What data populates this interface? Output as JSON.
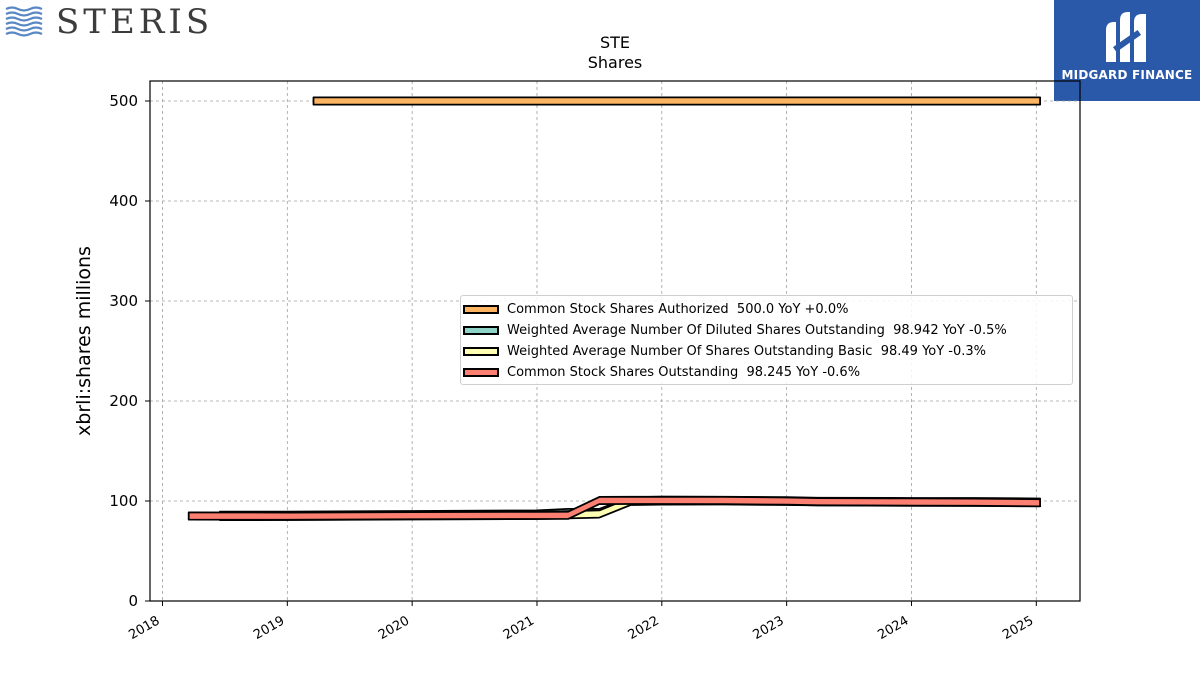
{
  "brand": {
    "company_name": "STERIS",
    "partner_name": "MIDGARD FINANCE",
    "partner_bg": "#2b59a9",
    "waves_color": "#5a88c4"
  },
  "title": {
    "line1": "STE",
    "line2": "Shares"
  },
  "chart_data": {
    "type": "area",
    "title": "STE Shares",
    "xlabel": "",
    "ylabel": "xbrli:shares millions",
    "xlim": [
      2017.9,
      2025.35
    ],
    "ylim": [
      0,
      520
    ],
    "x_ticks": [
      "2018",
      "2019",
      "2020",
      "2021",
      "2022",
      "2023",
      "2024",
      "2025"
    ],
    "y_ticks": [
      "0",
      "100",
      "200",
      "300",
      "400",
      "500"
    ],
    "grid": true,
    "legend_position": "center-right",
    "series": [
      {
        "name": "Common Stock Shares Authorized",
        "legend_label": "Common Stock Shares Authorized  500.0 YoY +0.0%",
        "color": "#fdb462",
        "points": [
          [
            2019.21,
            500
          ],
          [
            2025.03,
            500
          ]
        ]
      },
      {
        "name": "Weighted Average Number Of Diluted Shares Outstanding",
        "legend_label": "Weighted Average Number Of Diluted Shares Outstanding  98.942 YoY -0.5%",
        "color": "#8dd3c7",
        "points": [
          [
            2018.46,
            85.7
          ],
          [
            2019.0,
            85.8
          ],
          [
            2020.0,
            86.4
          ],
          [
            2021.0,
            87.0
          ],
          [
            2021.25,
            88.5
          ],
          [
            2021.5,
            88.5
          ],
          [
            2021.75,
            100.2
          ],
          [
            2022.0,
            100.8
          ],
          [
            2022.5,
            100.6
          ],
          [
            2023.0,
            100.2
          ],
          [
            2023.25,
            99.6
          ],
          [
            2024.0,
            99.4
          ],
          [
            2024.5,
            99.4
          ],
          [
            2025.03,
            98.9
          ]
        ]
      },
      {
        "name": "Weighted Average Number Of Shares Outstanding Basic",
        "legend_label": "Weighted Average Number Of Shares Outstanding Basic  98.49 YoY -0.3%",
        "color": "#ffffb3",
        "points": [
          [
            2018.46,
            84.5
          ],
          [
            2019.0,
            84.6
          ],
          [
            2020.0,
            85.2
          ],
          [
            2021.0,
            85.6
          ],
          [
            2021.25,
            86.2
          ],
          [
            2021.5,
            87.0
          ],
          [
            2021.75,
            99.6
          ],
          [
            2022.0,
            100.0
          ],
          [
            2022.5,
            100.1
          ],
          [
            2023.0,
            99.6
          ],
          [
            2023.25,
            99.2
          ],
          [
            2024.0,
            98.8
          ],
          [
            2024.5,
            98.8
          ],
          [
            2025.03,
            98.5
          ]
        ]
      },
      {
        "name": "Common Stock Shares Outstanding",
        "legend_label": "Common Stock Shares Outstanding  98.245 YoY -0.6%",
        "color": "#fb8072",
        "points": [
          [
            2018.21,
            85.0
          ],
          [
            2019.0,
            84.8
          ],
          [
            2020.0,
            85.3
          ],
          [
            2021.0,
            85.6
          ],
          [
            2021.25,
            85.7
          ],
          [
            2021.5,
            100.5
          ],
          [
            2021.75,
            100.6
          ],
          [
            2022.0,
            100.6
          ],
          [
            2022.5,
            100.5
          ],
          [
            2023.0,
            99.9
          ],
          [
            2023.25,
            99.3
          ],
          [
            2024.0,
            99.0
          ],
          [
            2024.5,
            98.8
          ],
          [
            2025.03,
            98.2
          ]
        ]
      }
    ]
  }
}
